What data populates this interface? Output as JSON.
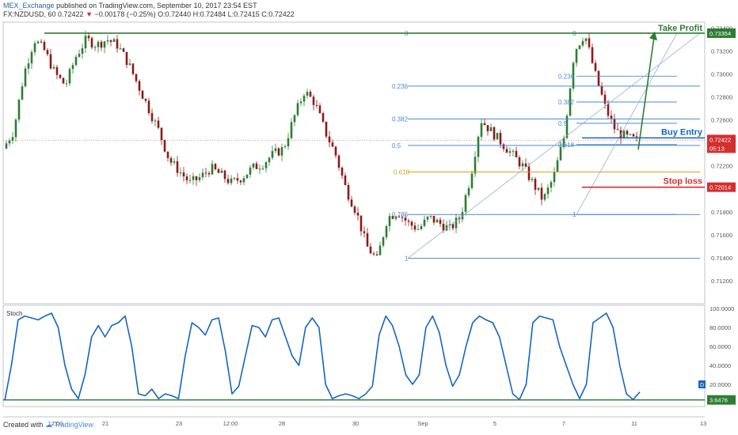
{
  "header": {
    "publisher": "MEX_Exchange",
    "published_text": "published on TradingView.com, September 10, 2017 23:54 EST",
    "symbol": "FX:NZDUSD, 60",
    "last": "0.72422",
    "change": "−0.00178 (−0.25%)",
    "ohlc": "O:0.72440 H:0.72484 L:0.72415 C:0.72422"
  },
  "footer": {
    "created_with": "Created with",
    "brand": "TradingView"
  },
  "colors": {
    "green": "#2e7d32",
    "blue": "#1565c0",
    "red": "#d32f2f",
    "fib": "#4a8ac9",
    "fib_gold": "#d4a017",
    "candle_up": "#2e7d32",
    "candle_down": "#8b1a1a",
    "stoch": "#1565c0"
  },
  "chart_data": [
    {
      "type": "candlestick",
      "ylim": [
        0.71,
        0.7345
      ],
      "y_ticks": [
        "0.73400",
        "0.73200",
        "0.73000",
        "0.72800",
        "0.72600",
        "0.72400",
        "0.72200",
        "0.72000",
        "0.71800",
        "0.71600",
        "0.71400",
        "0.71200"
      ],
      "x_ticks": [
        "12:00",
        "21",
        "23",
        "12:00",
        "28",
        "30",
        "Sep",
        "5",
        "7",
        "11",
        "13"
      ],
      "price_path": [
        0.7235,
        0.725,
        0.73,
        0.733,
        0.732,
        0.73,
        0.729,
        0.7315,
        0.733,
        0.7325,
        0.733,
        0.7325,
        0.731,
        0.729,
        0.727,
        0.725,
        0.7225,
        0.7215,
        0.7205,
        0.721,
        0.7218,
        0.7212,
        0.7205,
        0.721,
        0.7218,
        0.7222,
        0.723,
        0.7235,
        0.7262,
        0.7285,
        0.7275,
        0.725,
        0.723,
        0.72,
        0.718,
        0.715,
        0.7138,
        0.7175,
        0.718,
        0.717,
        0.7165,
        0.7175,
        0.717,
        0.7165,
        0.7175,
        0.721,
        0.726,
        0.725,
        0.724,
        0.723,
        0.722,
        0.7205,
        0.719,
        0.721,
        0.7245,
        0.732,
        0.7335,
        0.73,
        0.727,
        0.725,
        0.7245,
        0.7242
      ],
      "levels": [
        {
          "label": "Take Profit",
          "value": "0.73354",
          "price": 0.73354
        },
        {
          "label": "Buy Entry",
          "value": "0.72422",
          "price": 0.72422
        },
        {
          "label": "Stop loss",
          "value": "0.72014",
          "price": 0.72014
        }
      ],
      "countdown": "05:13",
      "fib_large": [
        {
          "label": "0",
          "price": 0.73354
        },
        {
          "label": "0.236",
          "price": 0.72893
        },
        {
          "label": "0.382",
          "price": 0.72608
        },
        {
          "label": "0.5",
          "price": 0.72377
        },
        {
          "label": "0.618",
          "price": 0.72147
        },
        {
          "label": "0.786",
          "price": 0.71776
        },
        {
          "label": "1",
          "price": 0.71395
        }
      ],
      "fib_small": [
        {
          "label": "0",
          "price": 0.73354
        },
        {
          "label": "0.236",
          "price": 0.7298
        },
        {
          "label": "0.382",
          "price": 0.72755
        },
        {
          "label": "0.5",
          "price": 0.7257
        },
        {
          "label": "0.618",
          "price": 0.72385
        },
        {
          "label": "1",
          "price": 0.71776
        }
      ]
    },
    {
      "type": "line",
      "title": "Stoch",
      "ylim": [
        0,
        100
      ],
      "y_ticks": [
        "100.0000",
        "80.0000",
        "60.0000",
        "40.0000",
        "20.0000"
      ],
      "current": "3.6476",
      "values": [
        3,
        40,
        88,
        92,
        90,
        88,
        92,
        95,
        80,
        40,
        15,
        5,
        30,
        70,
        82,
        70,
        82,
        85,
        92,
        60,
        10,
        8,
        15,
        5,
        10,
        8,
        5,
        50,
        85,
        80,
        72,
        88,
        90,
        55,
        10,
        18,
        50,
        82,
        80,
        70,
        88,
        90,
        70,
        50,
        40,
        80,
        90,
        80,
        20,
        5,
        8,
        10,
        8,
        5,
        10,
        18,
        72,
        92,
        82,
        60,
        30,
        20,
        30,
        80,
        92,
        75,
        40,
        18,
        30,
        60,
        85,
        92,
        88,
        85,
        70,
        40,
        10,
        4,
        20,
        85,
        92,
        90,
        88,
        60,
        40,
        20,
        5,
        20,
        85,
        90,
        95,
        80,
        40,
        10,
        4,
        12
      ]
    }
  ]
}
